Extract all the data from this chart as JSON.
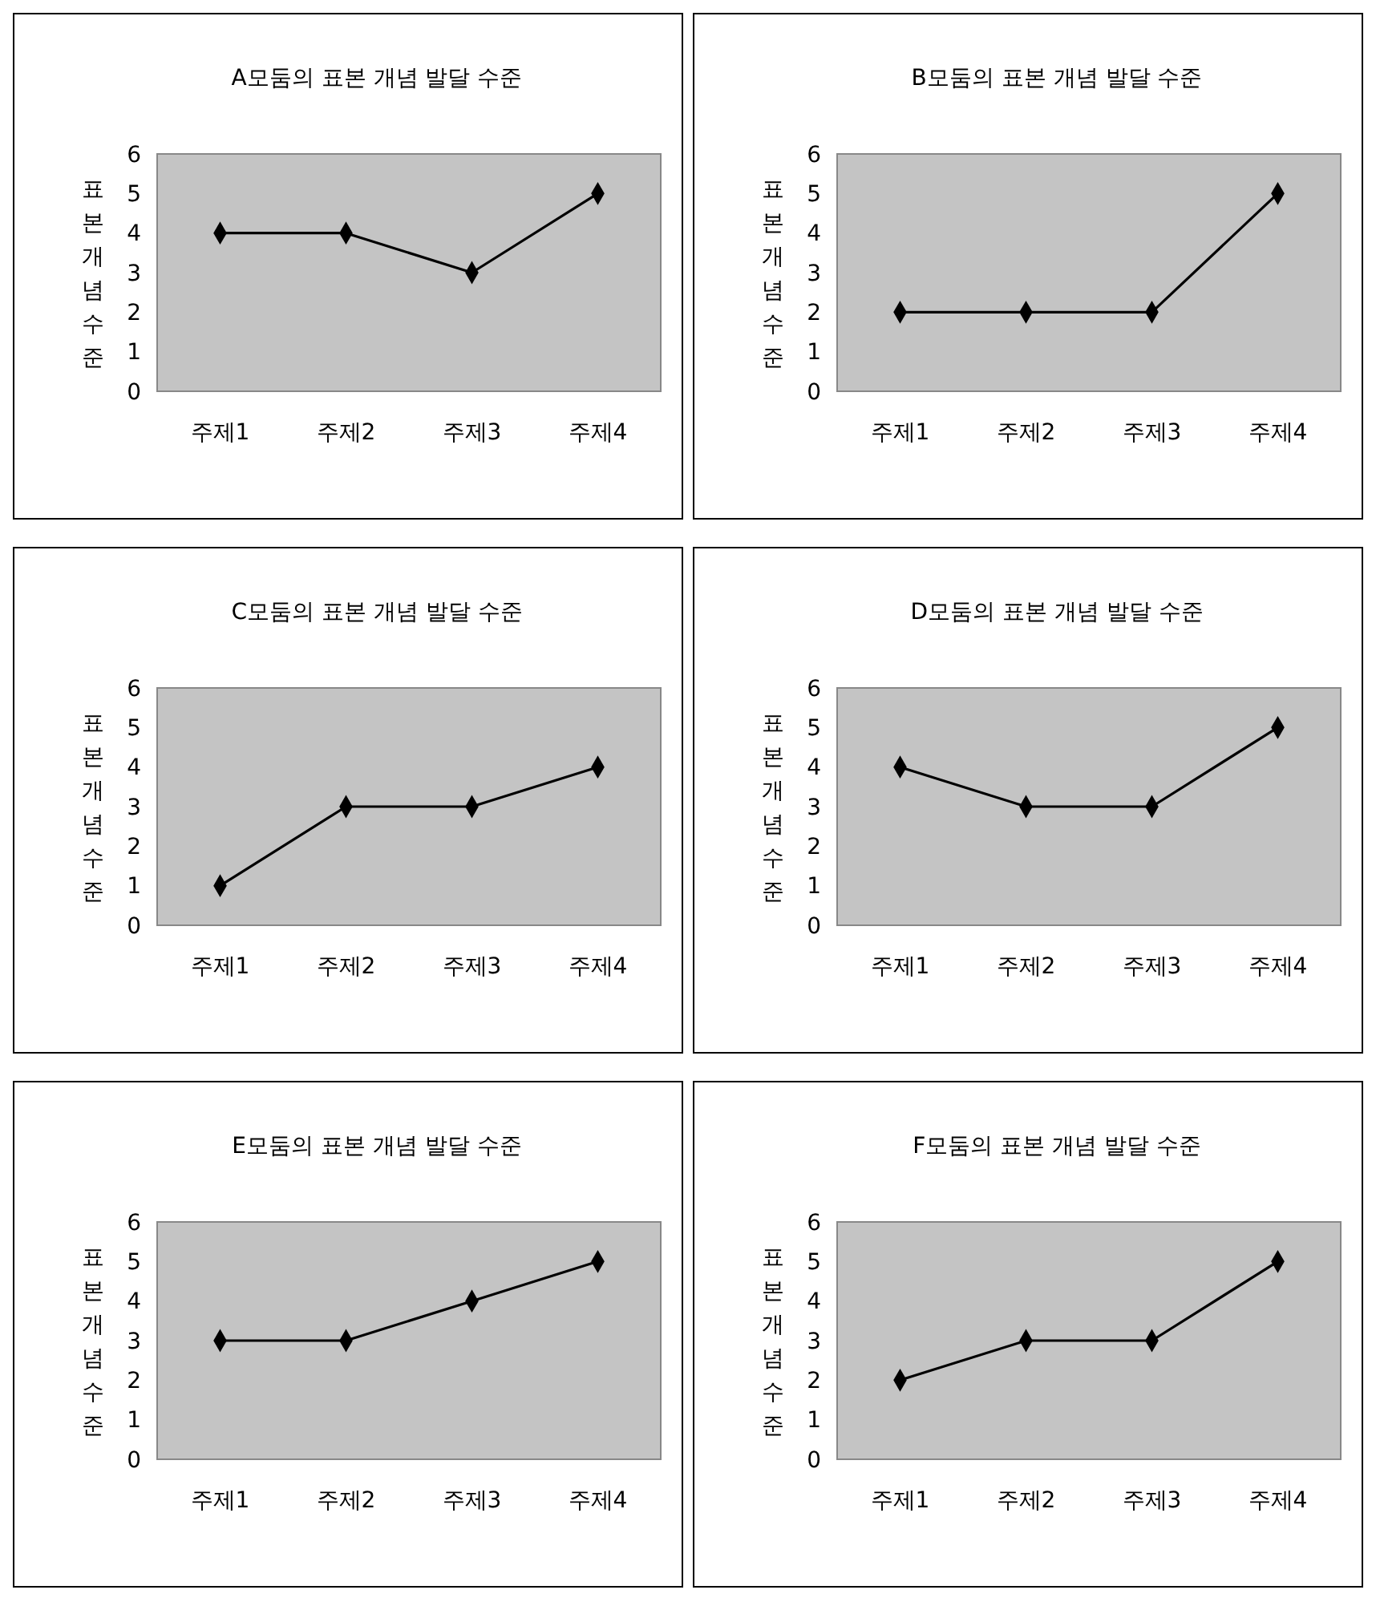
{
  "chart_data": [
    {
      "type": "line",
      "title": "A모둠의 표본 개념 발달 수준",
      "ylabel": "표본개념수준",
      "categories": [
        "주제1",
        "주제2",
        "주제3",
        "주제4"
      ],
      "series": [
        {
          "color": "#000000",
          "values": [
            4,
            4,
            3,
            5
          ]
        }
      ],
      "ylim": [
        0,
        6
      ],
      "yticks": [
        0,
        1,
        2,
        3,
        4,
        5,
        6
      ],
      "marker": "diamond",
      "line_style": "solid",
      "grid": false
    },
    {
      "type": "line",
      "title": "B모둠의 표본 개념 발달 수준",
      "ylabel": "표본개념수준",
      "categories": [
        "주제1",
        "주제2",
        "주제3",
        "주제4"
      ],
      "series": [
        {
          "color": "#000000",
          "values": [
            2,
            2,
            2,
            5
          ]
        }
      ],
      "ylim": [
        0,
        6
      ],
      "yticks": [
        0,
        1,
        2,
        3,
        4,
        5,
        6
      ],
      "marker": "diamond",
      "line_style": "solid",
      "grid": false
    },
    {
      "type": "line",
      "title": "C모둠의 표본 개념 발달 수준",
      "ylabel": "표본개념수준",
      "categories": [
        "주제1",
        "주제2",
        "주제3",
        "주제4"
      ],
      "series": [
        {
          "color": "#000000",
          "values": [
            1,
            3,
            3,
            4
          ]
        }
      ],
      "ylim": [
        0,
        6
      ],
      "yticks": [
        0,
        1,
        2,
        3,
        4,
        5,
        6
      ],
      "marker": "diamond",
      "line_style": "solid",
      "grid": false
    },
    {
      "type": "line",
      "title": "D모둠의 표본 개념 발달 수준",
      "ylabel": "표본개념수준",
      "categories": [
        "주제1",
        "주제2",
        "주제3",
        "주제4"
      ],
      "series": [
        {
          "color": "#000000",
          "values": [
            4,
            3,
            3,
            5
          ]
        }
      ],
      "ylim": [
        0,
        6
      ],
      "yticks": [
        0,
        1,
        2,
        3,
        4,
        5,
        6
      ],
      "marker": "diamond",
      "line_style": "solid",
      "grid": false
    },
    {
      "type": "line",
      "title": "E모둠의 표본 개념 발달 수준",
      "ylabel": "표본개념수준",
      "categories": [
        "주제1",
        "주제2",
        "주제3",
        "주제4"
      ],
      "series": [
        {
          "color": "#000000",
          "values": [
            3,
            3,
            4,
            5
          ]
        }
      ],
      "ylim": [
        0,
        6
      ],
      "yticks": [
        0,
        1,
        2,
        3,
        4,
        5,
        6
      ],
      "marker": "diamond",
      "line_style": "solid",
      "grid": false
    },
    {
      "type": "line",
      "title": "F모둠의 표본 개념 발달 수준",
      "ylabel": "표본개념수준",
      "categories": [
        "주제1",
        "주제2",
        "주제3",
        "주제4"
      ],
      "series": [
        {
          "color": "#000000",
          "values": [
            2,
            3,
            3,
            5
          ]
        }
      ],
      "ylim": [
        0,
        6
      ],
      "yticks": [
        0,
        1,
        2,
        3,
        4,
        5,
        6
      ],
      "marker": "diamond",
      "line_style": "solid",
      "grid": false
    }
  ]
}
